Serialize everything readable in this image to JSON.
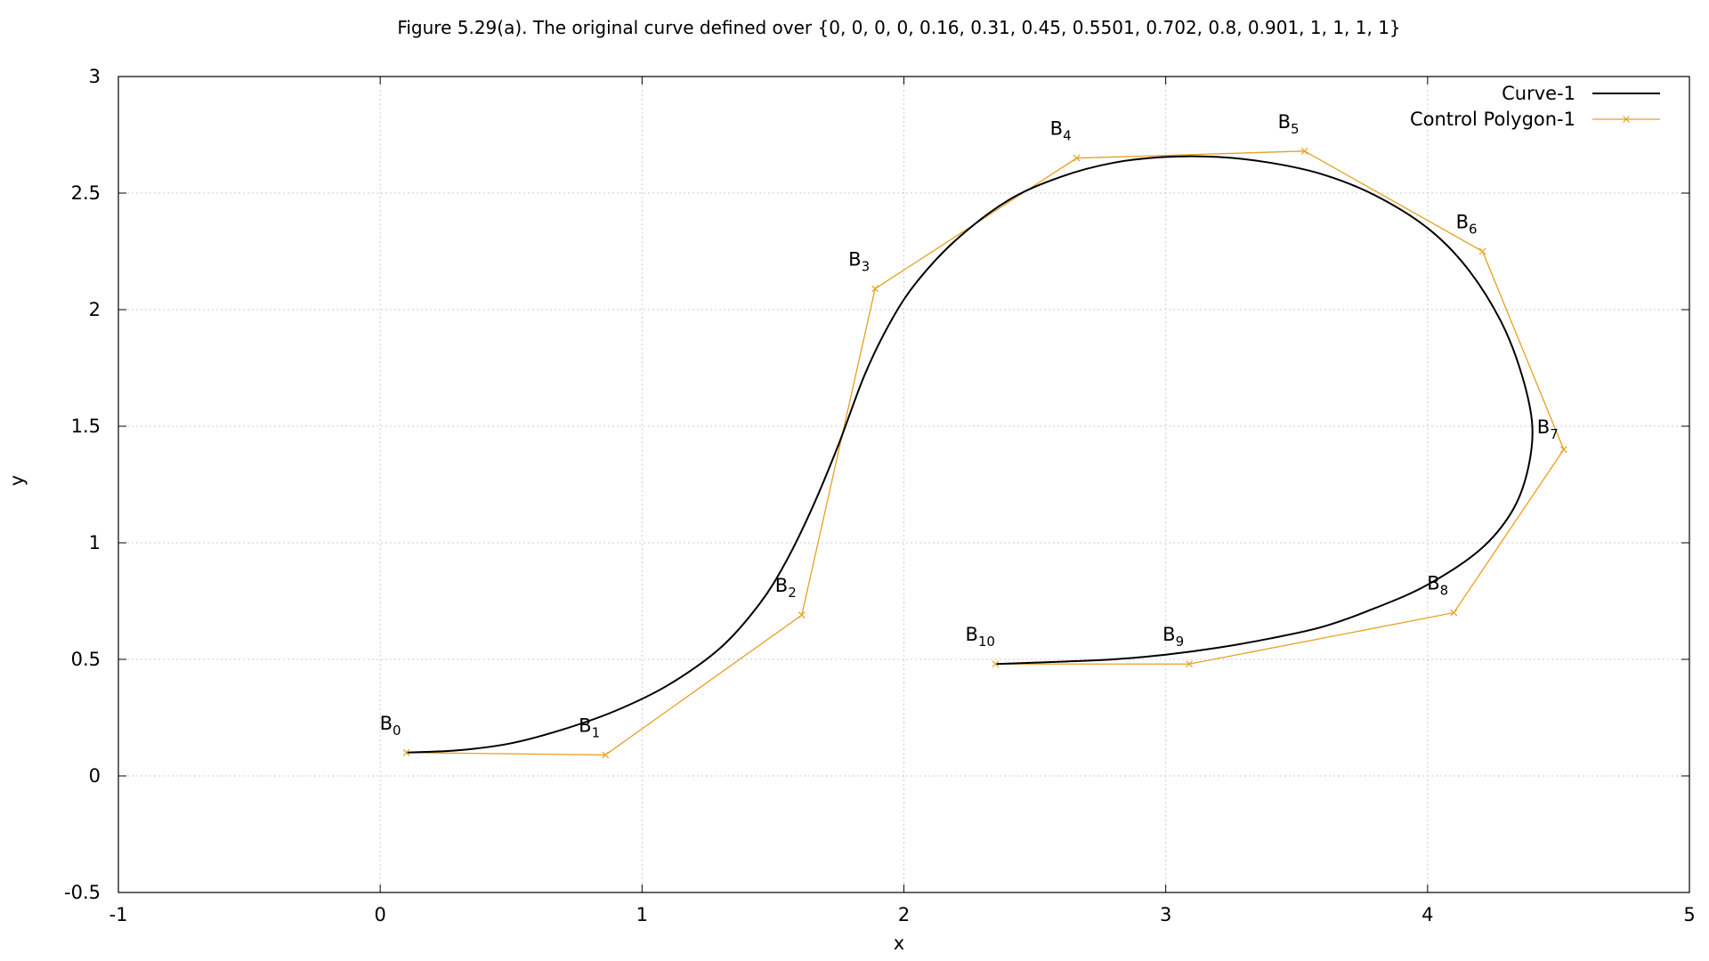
{
  "chart_data": {
    "type": "line",
    "title": "Figure 5.29(a). The original curve defined over  {0, 0, 0, 0, 0.16, 0.31, 0.45, 0.5501, 0.702, 0.8, 0.901, 1, 1, 1, 1}",
    "xlabel": "x",
    "ylabel": "y",
    "xlim": [
      -1,
      5
    ],
    "ylim": [
      -0.5,
      3
    ],
    "x_ticks": [
      -1,
      0,
      1,
      2,
      3,
      4,
      5
    ],
    "y_ticks": [
      -0.5,
      0,
      0.5,
      1,
      1.5,
      2,
      2.5,
      3
    ],
    "x_tick_labels": [
      "-1",
      "0",
      "1",
      "2",
      "3",
      "4",
      "5"
    ],
    "y_tick_labels": [
      "-0.5",
      "0",
      "0.5",
      "1",
      "1.5",
      "2",
      "2.5",
      "3"
    ],
    "grid": true,
    "legend_position": "top-right",
    "series": [
      {
        "name": "Curve-1",
        "color": "#000000",
        "marker": "none",
        "points": [
          [
            0.1,
            0.1
          ],
          [
            0.3,
            0.11
          ],
          [
            0.5,
            0.14
          ],
          [
            0.7,
            0.2
          ],
          [
            0.9,
            0.28
          ],
          [
            1.1,
            0.39
          ],
          [
            1.3,
            0.55
          ],
          [
            1.45,
            0.74
          ],
          [
            1.55,
            0.92
          ],
          [
            1.65,
            1.15
          ],
          [
            1.75,
            1.42
          ],
          [
            1.85,
            1.72
          ],
          [
            1.95,
            1.95
          ],
          [
            2.05,
            2.12
          ],
          [
            2.2,
            2.3
          ],
          [
            2.4,
            2.47
          ],
          [
            2.6,
            2.57
          ],
          [
            2.8,
            2.63
          ],
          [
            3.0,
            2.655
          ],
          [
            3.2,
            2.655
          ],
          [
            3.4,
            2.63
          ],
          [
            3.6,
            2.58
          ],
          [
            3.8,
            2.49
          ],
          [
            4.0,
            2.35
          ],
          [
            4.15,
            2.18
          ],
          [
            4.28,
            1.95
          ],
          [
            4.36,
            1.72
          ],
          [
            4.4,
            1.5
          ],
          [
            4.38,
            1.3
          ],
          [
            4.32,
            1.13
          ],
          [
            4.2,
            0.97
          ],
          [
            4.0,
            0.82
          ],
          [
            3.8,
            0.72
          ],
          [
            3.6,
            0.64
          ],
          [
            3.4,
            0.59
          ],
          [
            3.2,
            0.55
          ],
          [
            3.0,
            0.52
          ],
          [
            2.8,
            0.5
          ],
          [
            2.6,
            0.49
          ],
          [
            2.35,
            0.48
          ]
        ]
      },
      {
        "name": "Control Polygon-1",
        "color": "#e6a020",
        "marker": "x",
        "points": [
          [
            0.1,
            0.1
          ],
          [
            0.86,
            0.09
          ],
          [
            1.61,
            0.69
          ],
          [
            1.89,
            2.09
          ],
          [
            2.66,
            2.65
          ],
          [
            3.53,
            2.68
          ],
          [
            4.21,
            2.25
          ],
          [
            4.52,
            1.4
          ],
          [
            4.1,
            0.7
          ],
          [
            3.09,
            0.48
          ],
          [
            2.35,
            0.48
          ]
        ],
        "labels": [
          "B0",
          "B1",
          "B2",
          "B3",
          "B4",
          "B5",
          "B6",
          "B7",
          "B8",
          "B9",
          "B10"
        ]
      }
    ]
  }
}
